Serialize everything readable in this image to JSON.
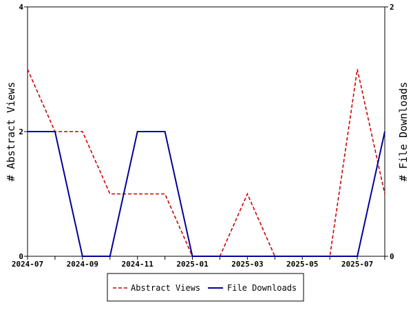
{
  "chart_data": {
    "type": "line",
    "x": [
      "2024-07",
      "2024-08",
      "2024-09",
      "2024-10",
      "2024-11",
      "2024-12",
      "2025-01",
      "2025-02",
      "2025-03",
      "2025-04",
      "2025-05",
      "2025-06",
      "2025-07",
      "2025-08"
    ],
    "x_tick_labels": [
      "2024-07",
      "2024-09",
      "2024-11",
      "2025-01",
      "2025-03",
      "2025-05",
      "2025-07"
    ],
    "series": [
      {
        "name": "Abstract Views",
        "axis": "left",
        "color": "#cc0000",
        "dash": "dashed",
        "values": [
          3,
          2,
          2,
          1,
          1,
          1,
          0,
          0,
          1,
          0,
          0,
          0,
          3,
          1
        ]
      },
      {
        "name": "File Downloads",
        "axis": "right",
        "color": "#000099",
        "dash": "solid",
        "values": [
          1,
          1,
          0,
          0,
          1,
          1,
          0,
          0,
          0,
          0,
          0,
          0,
          0,
          1
        ]
      }
    ],
    "ylabel_left": "# Abstract Views",
    "ylabel_right": "# File Downloads",
    "ylim_left": [
      0,
      4
    ],
    "yticks_left": [
      0,
      2,
      4
    ],
    "ylim_right": [
      0,
      2
    ],
    "yticks_right": [
      0,
      2
    ],
    "grid": false,
    "legend_position": "bottom"
  }
}
